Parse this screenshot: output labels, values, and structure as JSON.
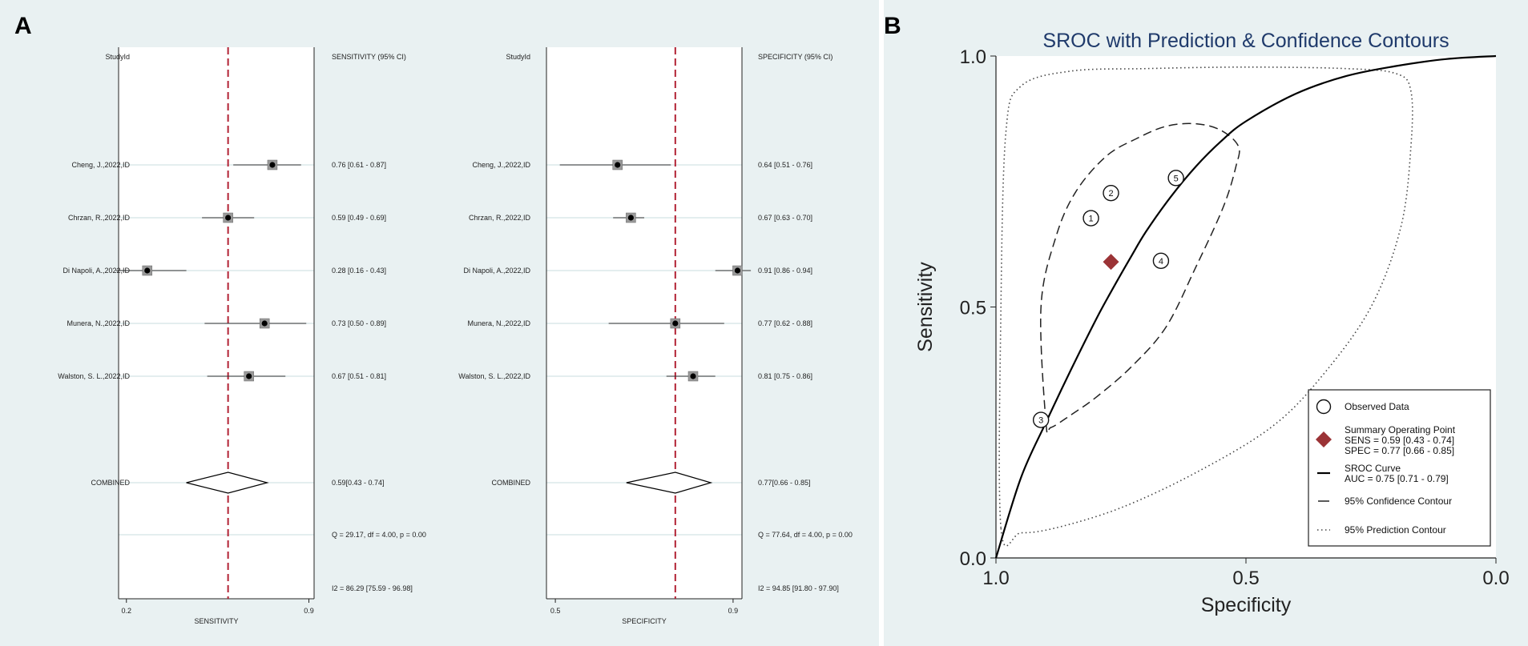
{
  "panel_a": {
    "label": "A",
    "study_header": "StudyId",
    "studies": [
      "Cheng, J.,2022,ID",
      "Chrzan, R.,2022,ID",
      "Di Napoli, A.,2022,ID",
      "Munera, N.,2022,ID",
      "Walston, S. L.,2022,ID"
    ],
    "combined_label": "COMBINED"
  },
  "panel_b": {
    "label": "B",
    "title": "SROC with Prediction & Confidence Contours"
  },
  "chart_data": [
    {
      "type": "forest",
      "id": "sensitivity",
      "ci_header": "SENSITIVITY (95% CI)",
      "xlabel": "SENSITIVITY",
      "xlim": [
        0.17,
        0.92
      ],
      "x_ticks": [
        {
          "v": 0.2,
          "label": "0.2"
        },
        {
          "v": 0.9,
          "label": "0.9"
        }
      ],
      "summary_line": 0.59,
      "estimates": [
        {
          "est": 0.76,
          "lo": 0.61,
          "hi": 0.87,
          "ci_text": "0.76 [0.61 - 0.87]",
          "w": 1.0
        },
        {
          "est": 0.59,
          "lo": 0.49,
          "hi": 0.69,
          "ci_text": "0.59 [0.49 - 0.69]",
          "w": 1.0
        },
        {
          "est": 0.28,
          "lo": 0.16,
          "hi": 0.43,
          "ci_text": "0.28 [0.16 - 0.43]",
          "w": 1.0
        },
        {
          "est": 0.73,
          "lo": 0.5,
          "hi": 0.89,
          "ci_text": "0.73 [0.50 - 0.89]",
          "w": 1.0
        },
        {
          "est": 0.67,
          "lo": 0.51,
          "hi": 0.81,
          "ci_text": "0.67 [0.51 - 0.81]",
          "w": 1.0
        }
      ],
      "combined": {
        "est": 0.59,
        "lo": 0.43,
        "hi": 0.74,
        "ci_text": "0.59[0.43 - 0.74]"
      },
      "q_text": "Q = 29.17, df = 4.00, p =  0.00",
      "i2_text": "I2 = 86.29 [75.59 - 96.98]"
    },
    {
      "type": "forest",
      "id": "specificity",
      "ci_header": "SPECIFICITY (95% CI)",
      "xlabel": "SPECIFICITY",
      "xlim": [
        0.48,
        0.92
      ],
      "x_ticks": [
        {
          "v": 0.5,
          "label": "0.5"
        },
        {
          "v": 0.9,
          "label": "0.9"
        }
      ],
      "summary_line": 0.77,
      "estimates": [
        {
          "est": 0.64,
          "lo": 0.51,
          "hi": 0.76,
          "ci_text": "0.64 [0.51 - 0.76]",
          "w": 1.0
        },
        {
          "est": 0.67,
          "lo": 0.63,
          "hi": 0.7,
          "ci_text": "0.67 [0.63 - 0.70]",
          "w": 1.0
        },
        {
          "est": 0.91,
          "lo": 0.86,
          "hi": 0.94,
          "ci_text": "0.91 [0.86 - 0.94]",
          "w": 1.0
        },
        {
          "est": 0.77,
          "lo": 0.62,
          "hi": 0.88,
          "ci_text": "0.77 [0.62 - 0.88]",
          "w": 1.0
        },
        {
          "est": 0.81,
          "lo": 0.75,
          "hi": 0.86,
          "ci_text": "0.81 [0.75 - 0.86]",
          "w": 1.0
        }
      ],
      "combined": {
        "est": 0.77,
        "lo": 0.66,
        "hi": 0.85,
        "ci_text": "0.77[0.66 - 0.85]"
      },
      "q_text": "Q = 77.64, df = 4.00, p =  0.00",
      "i2_text": "I2 = 94.85 [91.80 - 97.90]"
    },
    {
      "type": "sroc",
      "id": "sroc",
      "title": "SROC with Prediction & Confidence Contours",
      "xlabel": "Specificity",
      "ylabel": "Sensitivity",
      "xlim": [
        1.0,
        0.0
      ],
      "ylim": [
        0.0,
        1.0
      ],
      "x_ticks": [
        "1.0",
        "0.5",
        "0.0"
      ],
      "y_ticks": [
        "0.0",
        "0.5",
        "1.0"
      ],
      "observed": [
        {
          "label": "1",
          "spec": 0.81,
          "sens": 0.677
        },
        {
          "label": "2",
          "spec": 0.77,
          "sens": 0.727
        },
        {
          "label": "3",
          "spec": 0.91,
          "sens": 0.275
        },
        {
          "label": "4",
          "spec": 0.67,
          "sens": 0.592
        },
        {
          "label": "5",
          "spec": 0.64,
          "sens": 0.757
        }
      ],
      "summary_point": {
        "spec": 0.77,
        "sens": 0.59
      },
      "sroc_curve": [
        [
          1.0,
          0.0
        ],
        [
          0.95,
          0.16
        ],
        [
          0.9,
          0.27
        ],
        [
          0.85,
          0.375
        ],
        [
          0.8,
          0.475
        ],
        [
          0.77,
          0.53
        ],
        [
          0.73,
          0.6
        ],
        [
          0.7,
          0.65
        ],
        [
          0.65,
          0.72
        ],
        [
          0.6,
          0.78
        ],
        [
          0.55,
          0.83
        ],
        [
          0.5,
          0.87
        ],
        [
          0.4,
          0.925
        ],
        [
          0.3,
          0.96
        ],
        [
          0.2,
          0.98
        ],
        [
          0.1,
          0.994
        ],
        [
          0.0,
          1.0
        ]
      ],
      "confidence_contour": [
        [
          0.9,
          0.27
        ],
        [
          0.91,
          0.5
        ],
        [
          0.88,
          0.64
        ],
        [
          0.84,
          0.73
        ],
        [
          0.78,
          0.8
        ],
        [
          0.72,
          0.835
        ],
        [
          0.66,
          0.86
        ],
        [
          0.6,
          0.865
        ],
        [
          0.55,
          0.852
        ],
        [
          0.515,
          0.82
        ],
        [
          0.52,
          0.78
        ],
        [
          0.545,
          0.7
        ],
        [
          0.6,
          0.58
        ],
        [
          0.66,
          0.46
        ],
        [
          0.73,
          0.38
        ],
        [
          0.8,
          0.32
        ],
        [
          0.85,
          0.285
        ],
        [
          0.89,
          0.26
        ],
        [
          0.9,
          0.27
        ]
      ],
      "prediction_contour": [
        [
          0.99,
          0.06
        ],
        [
          0.99,
          0.5
        ],
        [
          0.98,
          0.85
        ],
        [
          0.95,
          0.94
        ],
        [
          0.85,
          0.97
        ],
        [
          0.7,
          0.975
        ],
        [
          0.5,
          0.978
        ],
        [
          0.3,
          0.975
        ],
        [
          0.2,
          0.965
        ],
        [
          0.17,
          0.93
        ],
        [
          0.17,
          0.82
        ],
        [
          0.19,
          0.66
        ],
        [
          0.25,
          0.5
        ],
        [
          0.35,
          0.36
        ],
        [
          0.45,
          0.26
        ],
        [
          0.6,
          0.17
        ],
        [
          0.75,
          0.1
        ],
        [
          0.88,
          0.06
        ],
        [
          0.95,
          0.05
        ],
        [
          0.99,
          0.06
        ]
      ],
      "legend": {
        "position": "bottom-right",
        "items": [
          {
            "kind": "circle",
            "lines": [
              "Observed Data"
            ]
          },
          {
            "kind": "diamond",
            "lines": [
              "Summary Operating Point",
              "SENS = 0.59 [0.43 - 0.74]",
              "SPEC = 0.77 [0.66 - 0.85]"
            ]
          },
          {
            "kind": "solid",
            "lines": [
              "SROC Curve",
              "AUC = 0.75 [0.71 - 0.79]"
            ]
          },
          {
            "kind": "dash",
            "lines": [
              "95% Confidence Contour"
            ]
          },
          {
            "kind": "dot",
            "lines": [
              "95% Prediction Contour"
            ]
          }
        ]
      },
      "colors": {
        "summary": "#9b3336",
        "title": "#1f3a6b"
      }
    }
  ]
}
